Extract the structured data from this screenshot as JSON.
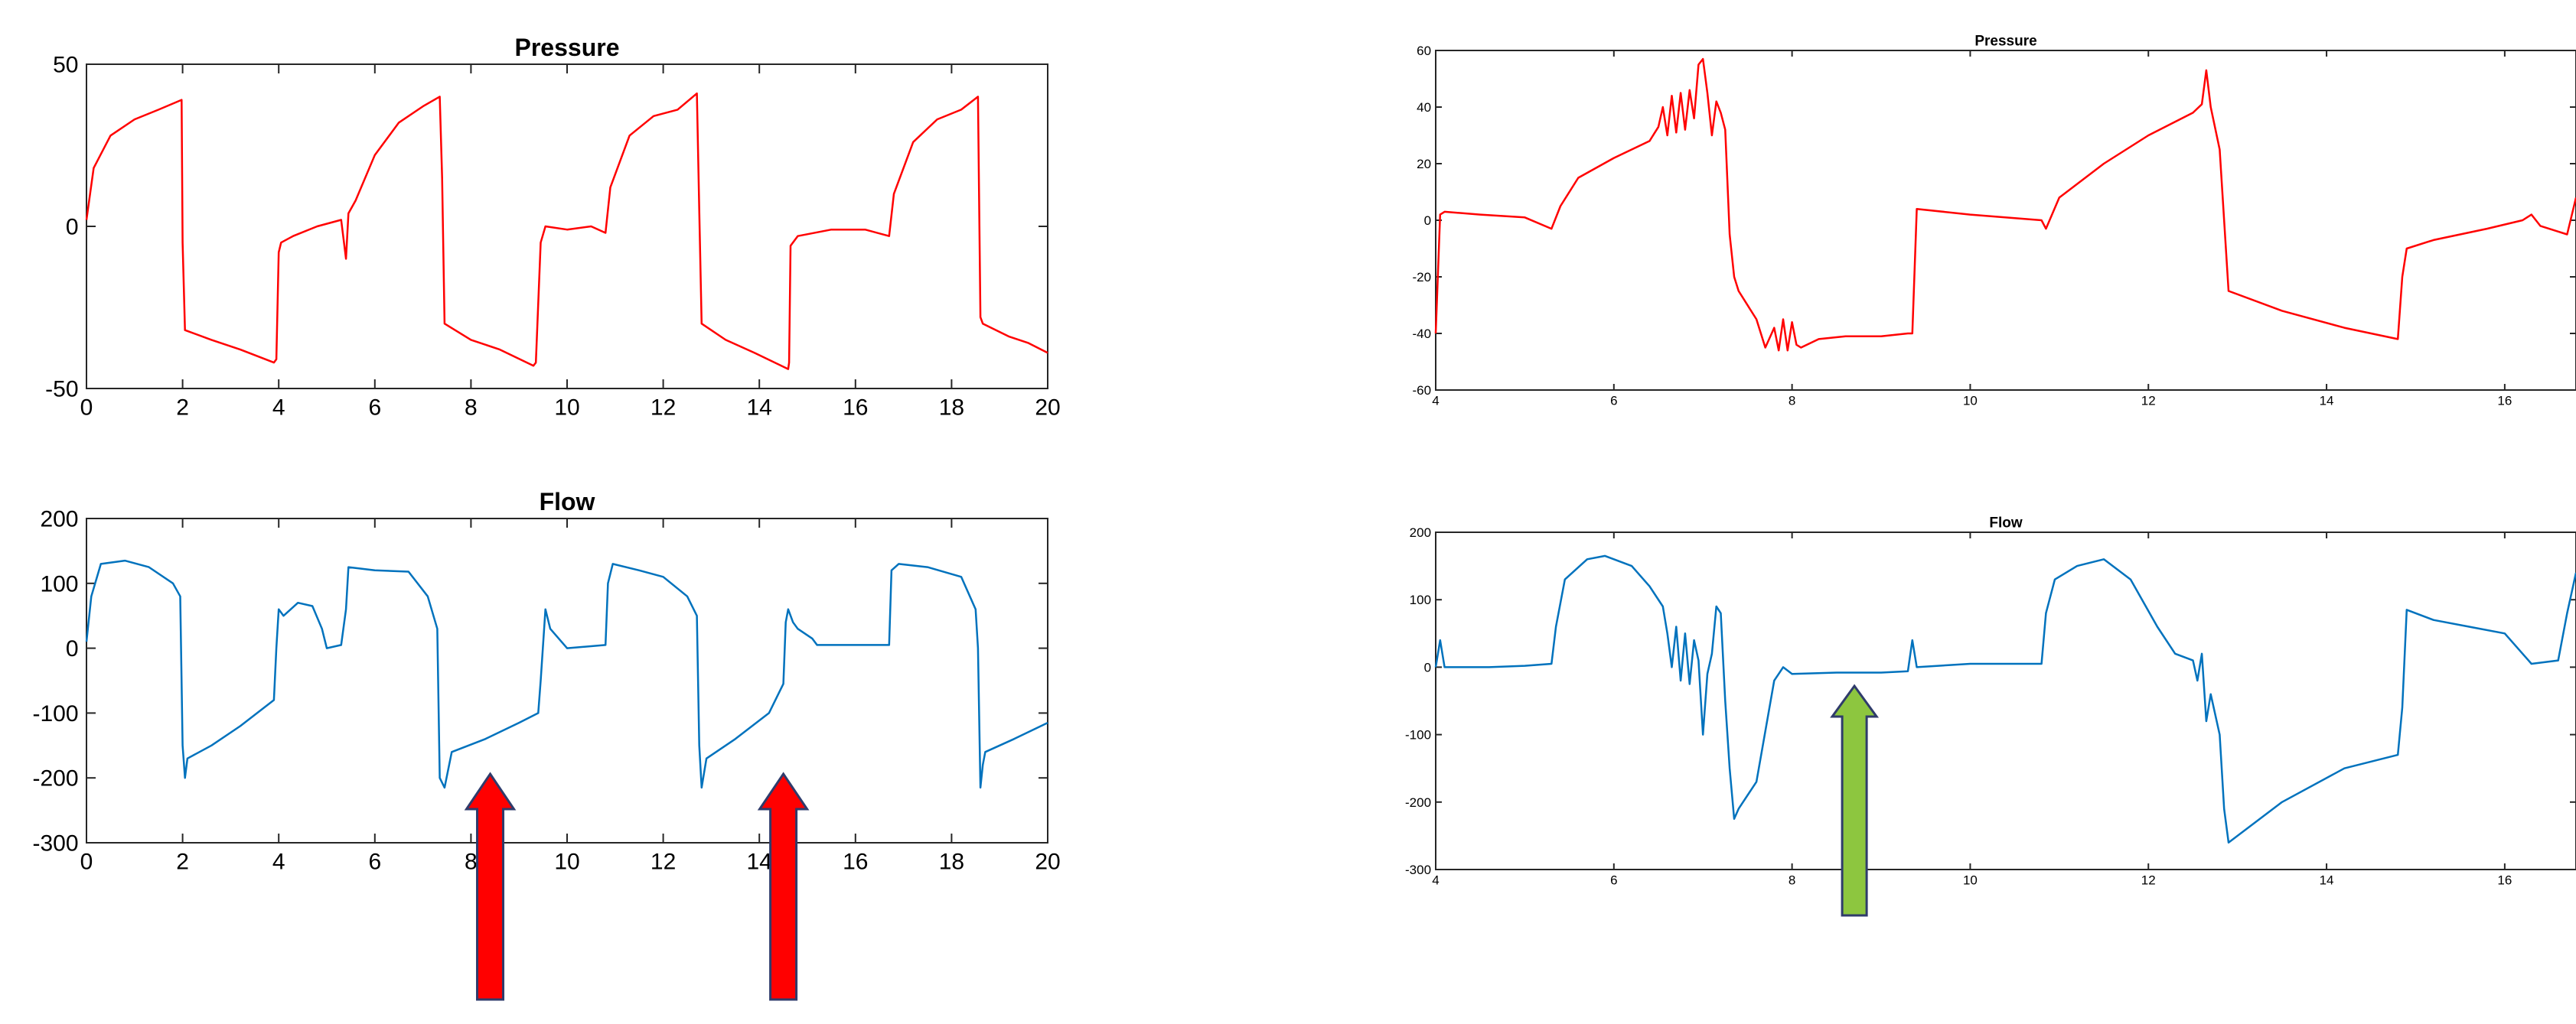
{
  "colors": {
    "pressure": "#ff0000",
    "flow": "#0072bd",
    "red_arrow": "#ff0000",
    "green_arrow": "#8dc63f",
    "arrow_outline": "#2f3b6b"
  },
  "annotations": [
    {
      "type": "arrow",
      "direction": "up",
      "color": "red",
      "panel": "left-flow",
      "x": 8.4
    },
    {
      "type": "arrow",
      "direction": "up",
      "color": "red",
      "panel": "left-flow",
      "x": 14.5
    },
    {
      "type": "arrow",
      "direction": "up",
      "color": "green",
      "panel": "right-flow",
      "x": 8.7
    }
  ],
  "chart_data": [
    {
      "id": "left-pressure",
      "type": "line",
      "title": "Pressure",
      "xlabel": "",
      "ylabel": "",
      "xlim": [
        0,
        20
      ],
      "ylim": [
        -50,
        50
      ],
      "xticks": [
        0,
        2,
        4,
        6,
        8,
        10,
        12,
        14,
        16,
        18,
        20
      ],
      "yticks": [
        -50,
        0,
        50
      ],
      "grid": false,
      "series": [
        {
          "color": "#ff0000",
          "x": [
            0,
            0.15,
            0.5,
            1.0,
            1.5,
            1.98,
            2.0,
            2.05,
            2.6,
            3.2,
            3.9,
            3.95,
            4.0,
            4.05,
            4.3,
            4.8,
            5.3,
            5.4,
            5.45,
            5.6,
            6.0,
            6.5,
            7.0,
            7.35,
            7.4,
            7.45,
            8.0,
            8.6,
            9.3,
            9.35,
            9.45,
            9.55,
            10.0,
            10.5,
            10.8,
            10.9,
            11.3,
            11.8,
            12.3,
            12.7,
            12.75,
            12.8,
            13.3,
            13.9,
            14.6,
            14.62,
            14.65,
            14.8,
            15.5,
            16.2,
            16.7,
            16.8,
            17.2,
            17.7,
            18.2,
            18.55,
            18.6,
            18.65,
            19.2,
            19.6,
            20.0
          ],
          "y": [
            2,
            18,
            28,
            33,
            36,
            39,
            -5,
            -32,
            -35,
            -38,
            -42,
            -41,
            -8,
            -5,
            -3,
            0,
            2,
            -10,
            4,
            8,
            22,
            32,
            37,
            40,
            15,
            -30,
            -35,
            -38,
            -43,
            -42,
            -5,
            0,
            -1,
            0,
            -2,
            12,
            28,
            34,
            36,
            41,
            5,
            -30,
            -35,
            -39,
            -44,
            -42,
            -6,
            -3,
            -1,
            -1,
            -3,
            10,
            26,
            33,
            36,
            40,
            -28,
            -30,
            -34,
            -36,
            -39
          ]
        }
      ]
    },
    {
      "id": "left-flow",
      "type": "line",
      "title": "Flow",
      "xlabel": "",
      "ylabel": "",
      "xlim": [
        0,
        20
      ],
      "ylim": [
        -300,
        200
      ],
      "xticks": [
        0,
        2,
        4,
        6,
        8,
        10,
        12,
        14,
        16,
        18,
        20
      ],
      "yticks": [
        -300,
        -200,
        -100,
        0,
        100,
        200
      ],
      "grid": false,
      "series": [
        {
          "color": "#0072bd",
          "x": [
            0,
            0.1,
            0.3,
            0.8,
            1.3,
            1.8,
            1.95,
            2.0,
            2.05,
            2.1,
            2.6,
            3.2,
            3.9,
            3.95,
            4.0,
            4.1,
            4.4,
            4.7,
            4.9,
            5.0,
            5.3,
            5.4,
            5.45,
            6.0,
            6.7,
            7.1,
            7.3,
            7.35,
            7.45,
            7.6,
            8.3,
            9.0,
            9.4,
            9.45,
            9.55,
            9.65,
            10.0,
            10.8,
            10.85,
            10.95,
            11.5,
            12.0,
            12.5,
            12.7,
            12.75,
            12.8,
            12.9,
            13.5,
            14.2,
            14.5,
            14.55,
            14.6,
            14.7,
            14.8,
            15.1,
            15.2,
            16.0,
            16.7,
            16.75,
            16.9,
            17.5,
            18.2,
            18.5,
            18.55,
            18.6,
            18.65,
            18.7,
            19.3,
            20.0
          ],
          "y": [
            10,
            80,
            130,
            135,
            125,
            100,
            80,
            -150,
            -200,
            -170,
            -150,
            -120,
            -80,
            0,
            60,
            50,
            70,
            65,
            30,
            0,
            5,
            60,
            125,
            120,
            118,
            80,
            30,
            -200,
            -215,
            -160,
            -140,
            -115,
            -100,
            -50,
            60,
            30,
            0,
            5,
            100,
            130,
            120,
            110,
            80,
            50,
            -150,
            -215,
            -170,
            -140,
            -100,
            -55,
            40,
            60,
            40,
            30,
            15,
            5,
            5,
            5,
            120,
            130,
            125,
            110,
            60,
            0,
            -215,
            -180,
            -160,
            -140,
            -115
          ]
        }
      ]
    },
    {
      "id": "right-pressure",
      "type": "line",
      "title": "Pressure",
      "xlabel": "",
      "ylabel": "",
      "xlim": [
        4,
        16.8
      ],
      "ylim": [
        -60,
        60
      ],
      "xticks": [
        4,
        6,
        8,
        10,
        12,
        14,
        16
      ],
      "yticks": [
        -60,
        -40,
        -20,
        0,
        20,
        40,
        60
      ],
      "grid": false,
      "series": [
        {
          "color": "#ff0000",
          "x": [
            4.0,
            4.05,
            4.1,
            4.5,
            5.0,
            5.3,
            5.4,
            5.6,
            6.0,
            6.4,
            6.5,
            6.55,
            6.6,
            6.65,
            6.7,
            6.75,
            6.8,
            6.85,
            6.9,
            6.95,
            7.0,
            7.05,
            7.1,
            7.15,
            7.2,
            7.25,
            7.3,
            7.35,
            7.4,
            7.6,
            7.7,
            7.8,
            7.85,
            7.9,
            7.95,
            8.0,
            8.05,
            8.1,
            8.3,
            8.6,
            9.0,
            9.3,
            9.35,
            9.4,
            10.0,
            10.8,
            10.85,
            11.0,
            11.5,
            12.0,
            12.5,
            12.6,
            12.65,
            12.7,
            12.8,
            12.9,
            13.5,
            14.2,
            14.8,
            14.85,
            14.9,
            15.2,
            15.8,
            16.2,
            16.3,
            16.4,
            16.6,
            16.7,
            16.8
          ],
          "y": [
            -40,
            2,
            3,
            2,
            1,
            -3,
            5,
            15,
            22,
            28,
            33,
            40,
            30,
            44,
            31,
            45,
            32,
            46,
            36,
            55,
            57,
            45,
            30,
            42,
            38,
            32,
            -5,
            -20,
            -25,
            -35,
            -45,
            -38,
            -46,
            -35,
            -46,
            -36,
            -44,
            -45,
            -42,
            -41,
            -41,
            -40,
            -40,
            4,
            2,
            0,
            -3,
            8,
            20,
            30,
            38,
            41,
            53,
            40,
            25,
            -25,
            -32,
            -38,
            -42,
            -20,
            -10,
            -7,
            -3,
            0,
            2,
            -2,
            -4,
            -5,
            8
          ]
        }
      ]
    },
    {
      "id": "right-flow",
      "type": "line",
      "title": "Flow",
      "xlabel": "",
      "ylabel": "",
      "xlim": [
        4,
        16.8
      ],
      "ylim": [
        -300,
        200
      ],
      "xticks": [
        4,
        6,
        8,
        10,
        12,
        14,
        16
      ],
      "yticks": [
        -300,
        -200,
        -100,
        0,
        100,
        200
      ],
      "grid": false,
      "series": [
        {
          "color": "#0072bd",
          "x": [
            4.0,
            4.05,
            4.1,
            4.2,
            4.6,
            5.0,
            5.3,
            5.35,
            5.45,
            5.7,
            5.9,
            6.2,
            6.4,
            6.55,
            6.6,
            6.65,
            6.7,
            6.75,
            6.8,
            6.85,
            6.9,
            6.95,
            7.0,
            7.05,
            7.1,
            7.15,
            7.2,
            7.25,
            7.3,
            7.35,
            7.4,
            7.6,
            7.8,
            7.85,
            7.9,
            8.0,
            8.5,
            9.0,
            9.3,
            9.35,
            9.4,
            10.0,
            10.5,
            10.8,
            10.85,
            10.95,
            11.2,
            11.5,
            11.8,
            12.1,
            12.3,
            12.5,
            12.55,
            12.6,
            12.65,
            12.7,
            12.8,
            12.85,
            12.9,
            13.5,
            14.2,
            14.8,
            14.85,
            14.9,
            15.2,
            15.6,
            16.0,
            16.2,
            16.3,
            16.6,
            16.7,
            16.8
          ],
          "y": [
            0,
            40,
            0,
            0,
            0,
            2,
            5,
            60,
            130,
            160,
            165,
            150,
            120,
            90,
            50,
            0,
            60,
            -20,
            50,
            -25,
            40,
            10,
            -100,
            -10,
            20,
            90,
            80,
            -50,
            -150,
            -225,
            -210,
            -170,
            -20,
            -10,
            0,
            -10,
            -8,
            -8,
            -6,
            40,
            0,
            5,
            5,
            5,
            80,
            130,
            150,
            160,
            130,
            60,
            20,
            10,
            -20,
            20,
            -80,
            -40,
            -100,
            -210,
            -260,
            -200,
            -150,
            -130,
            -60,
            85,
            70,
            60,
            50,
            20,
            5,
            10,
            80,
            140
          ]
        }
      ]
    }
  ]
}
